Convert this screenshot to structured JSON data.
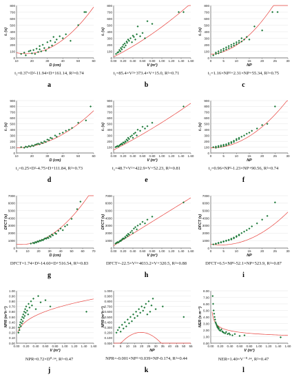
{
  "style": {
    "point_color": "#1e7a3a",
    "fit_color": "#e8413c",
    "axis_color": "#555555",
    "grid_color": "#e4e4e4"
  },
  "chart_data": [
    {
      "type": "scatter",
      "panel": "a",
      "title": "",
      "xlabel": "D (cm)",
      "ylabel": "t₁ (s)",
      "xticks": [
        "10",
        "20",
        "30",
        "40",
        "50",
        "60"
      ],
      "yticks": [
        "0",
        "100",
        "200",
        "300",
        "400",
        "500",
        "600",
        "700",
        "800"
      ],
      "xlim": [
        10,
        60
      ],
      "ylim": [
        0,
        800
      ],
      "x": [
        13,
        15,
        16,
        18,
        19,
        20,
        21,
        22,
        23,
        24,
        25,
        25,
        26,
        27,
        28,
        29,
        30,
        31,
        32,
        33,
        34,
        35,
        36,
        38,
        40,
        42,
        45,
        50,
        54,
        55
      ],
      "y": [
        60,
        80,
        40,
        100,
        110,
        70,
        120,
        60,
        140,
        90,
        180,
        130,
        100,
        200,
        150,
        110,
        240,
        160,
        260,
        190,
        320,
        240,
        280,
        330,
        300,
        360,
        260,
        500,
        700,
        700
      ],
      "fit": {
        "coef": [
          0.37,
          -11.94,
          161.14
        ]
      },
      "equation": "t₁=0.37×D²-11.94×D+161.14, R²=0.74"
    },
    {
      "type": "scatter",
      "panel": "b",
      "title": "",
      "xlabel": "V (m³)",
      "ylabel": "t₁ (s)",
      "xticks": [
        "0.00",
        "0.20",
        "0.40",
        "0.60",
        "0.80",
        "1.00",
        "1.20",
        "1.40",
        "1.60"
      ],
      "yticks": [
        "0",
        "100",
        "200",
        "300",
        "400",
        "500",
        "600",
        "700",
        "800"
      ],
      "xlim": [
        0,
        1.6
      ],
      "ylim": [
        0,
        800
      ],
      "x": [
        0.05,
        0.08,
        0.1,
        0.12,
        0.14,
        0.15,
        0.17,
        0.18,
        0.2,
        0.22,
        0.23,
        0.25,
        0.27,
        0.28,
        0.3,
        0.32,
        0.35,
        0.38,
        0.4,
        0.42,
        0.45,
        0.48,
        0.5,
        0.55,
        0.6,
        0.65,
        0.7,
        0.8,
        1.35,
        1.45
      ],
      "y": [
        60,
        80,
        90,
        120,
        100,
        150,
        130,
        170,
        200,
        160,
        220,
        190,
        250,
        230,
        280,
        260,
        300,
        240,
        340,
        320,
        280,
        360,
        480,
        330,
        380,
        300,
        560,
        520,
        700,
        700
      ],
      "fit": {
        "coef": [
          85.4,
          373.4,
          15.0
        ]
      },
      "equation": "t₁=85.4×V²+373.4×V+15.0, R²=0.71"
    },
    {
      "type": "scatter",
      "panel": "c",
      "title": "",
      "xlabel": "NP",
      "ylabel": "t₁ (s)",
      "xticks": [
        "0",
        "5",
        "10",
        "15",
        "20",
        "25",
        "30"
      ],
      "yticks": [
        "0",
        "100",
        "200",
        "300",
        "400",
        "500",
        "600",
        "700",
        "800"
      ],
      "xlim": [
        0,
        30
      ],
      "ylim": [
        0,
        800
      ],
      "x": [
        1,
        2,
        2,
        3,
        3,
        4,
        4,
        5,
        5,
        6,
        6,
        7,
        7,
        8,
        8,
        9,
        9,
        10,
        10,
        11,
        11,
        12,
        12,
        13,
        14,
        15,
        17,
        20,
        24,
        26
      ],
      "y": [
        40,
        60,
        80,
        70,
        100,
        90,
        120,
        110,
        140,
        130,
        160,
        150,
        180,
        170,
        200,
        190,
        220,
        210,
        240,
        230,
        260,
        250,
        300,
        280,
        320,
        280,
        480,
        420,
        700,
        700
      ],
      "fit": {
        "coef": [
          1.16,
          2.31,
          55.34
        ]
      },
      "equation": "t₁=1.16×NP²+2.31×NP+55.34, R²=0.75"
    },
    {
      "type": "scatter",
      "panel": "d",
      "title": "",
      "xlabel": "D (cm)",
      "ylabel": "t₂ (s)",
      "xticks": [
        "10",
        "20",
        "30",
        "40",
        "50",
        "60"
      ],
      "yticks": [
        "0",
        "100",
        "200",
        "300",
        "400",
        "500",
        "600",
        "700",
        "800",
        "900"
      ],
      "xlim": [
        10,
        60
      ],
      "ylim": [
        0,
        900
      ],
      "x": [
        13,
        15,
        16,
        17,
        18,
        19,
        20,
        21,
        22,
        23,
        24,
        25,
        26,
        27,
        28,
        29,
        30,
        31,
        32,
        33,
        35,
        36,
        38,
        40,
        42,
        44,
        46,
        50,
        55,
        58
      ],
      "y": [
        100,
        90,
        110,
        100,
        120,
        110,
        130,
        120,
        140,
        150,
        160,
        150,
        180,
        170,
        200,
        190,
        230,
        220,
        260,
        250,
        300,
        280,
        330,
        350,
        380,
        400,
        430,
        520,
        560,
        800
      ],
      "fit": {
        "coef": [
          0.25,
          -4.75,
          111.84
        ]
      },
      "equation": "t₂=0.25×D²-4.75×D+111.84, R²=0.73"
    },
    {
      "type": "scatter",
      "panel": "e",
      "title": "",
      "xlabel": "V (m³)",
      "ylabel": "t₂ (s)",
      "xticks": [
        "0.00",
        "0.20",
        "0.40",
        "0.60",
        "0.80",
        "1.00",
        "1.20",
        "1.40",
        "1.60"
      ],
      "yticks": [
        "0",
        "100",
        "200",
        "300",
        "400",
        "500",
        "600",
        "700",
        "800",
        "900"
      ],
      "xlim": [
        0,
        1.6
      ],
      "ylim": [
        0,
        900
      ],
      "x": [
        0.04,
        0.06,
        0.08,
        0.1,
        0.12,
        0.14,
        0.15,
        0.17,
        0.18,
        0.2,
        0.22,
        0.24,
        0.25,
        0.27,
        0.29,
        0.3,
        0.32,
        0.35,
        0.38,
        0.4,
        0.42,
        0.45,
        0.48,
        0.5,
        0.55,
        0.6,
        0.65,
        0.7,
        0.8,
        1.45
      ],
      "y": [
        100,
        110,
        120,
        110,
        130,
        140,
        150,
        160,
        150,
        180,
        170,
        200,
        190,
        230,
        210,
        260,
        240,
        280,
        300,
        260,
        330,
        350,
        300,
        400,
        380,
        450,
        420,
        460,
        520,
        800
      ],
      "fit": {
        "coef": [
          48.7,
          422.9,
          52.23
        ]
      },
      "equation": "t₂=48.7×V²+422.9×V+52.23, R²=0.81"
    },
    {
      "type": "scatter",
      "panel": "f",
      "title": "",
      "xlabel": "NP",
      "ylabel": "t₂ (s)",
      "xticks": [
        "0",
        "5",
        "10",
        "15",
        "20",
        "25",
        "30"
      ],
      "yticks": [
        "0",
        "100",
        "200",
        "300",
        "400",
        "500",
        "600",
        "700",
        "800",
        "900"
      ],
      "xlim": [
        0,
        30
      ],
      "ylim": [
        0,
        900
      ],
      "x": [
        1,
        2,
        2,
        3,
        3,
        4,
        4,
        5,
        5,
        6,
        6,
        7,
        7,
        8,
        8,
        9,
        9,
        10,
        10,
        11,
        11,
        12,
        13,
        14,
        15,
        16,
        18,
        20,
        22,
        25
      ],
      "y": [
        100,
        110,
        90,
        120,
        100,
        130,
        110,
        140,
        120,
        150,
        130,
        170,
        150,
        190,
        170,
        210,
        190,
        240,
        220,
        260,
        240,
        280,
        300,
        330,
        350,
        380,
        420,
        480,
        500,
        800
      ],
      "fit": {
        "coef": [
          0.96,
          -1.23,
          90.56
        ]
      },
      "equation": "t₂=0.96×NP²-1.23×NP+90.56, R²=0.74"
    },
    {
      "type": "scatter",
      "panel": "g",
      "title": "",
      "xlabel": "D (cm)",
      "ylabel": "DFCT (s)",
      "xticks": [
        "0",
        "10",
        "20",
        "30",
        "40",
        "50",
        "60",
        "70"
      ],
      "yticks": [
        "0",
        "1000",
        "2000",
        "3000",
        "4000",
        "5000",
        "6000",
        "7000"
      ],
      "xlim": [
        0,
        70
      ],
      "ylim": [
        0,
        7000
      ],
      "x": [
        13,
        15,
        16,
        17,
        18,
        19,
        20,
        21,
        22,
        23,
        24,
        25,
        26,
        27,
        28,
        29,
        30,
        31,
        32,
        33,
        35,
        36,
        38,
        40,
        42,
        44,
        46,
        50,
        55,
        58
      ],
      "y": [
        600,
        700,
        650,
        800,
        750,
        900,
        850,
        1000,
        950,
        1100,
        1050,
        1200,
        1300,
        1250,
        1400,
        1350,
        1600,
        1500,
        1800,
        1700,
        2000,
        1900,
        2300,
        2600,
        2400,
        2900,
        3100,
        3900,
        5200,
        6200
      ],
      "fit": {
        "coef": [
          1.74,
          -14.6,
          516.54
        ]
      },
      "equation": "DFCT=1.74×D²-14.60×D+516.54, R²=0.83"
    },
    {
      "type": "scatter",
      "panel": "h",
      "title": "",
      "xlabel": "V (m³)",
      "ylabel": "DFCT (s)",
      "xticks": [
        "0.00",
        "0.20",
        "0.40",
        "0.60",
        "0.80",
        "1.00",
        "1.20",
        "1.40",
        "1.60"
      ],
      "yticks": [
        "0",
        "1000",
        "2000",
        "3000",
        "4000",
        "5000",
        "6000",
        "7000"
      ],
      "xlim": [
        0,
        1.6
      ],
      "ylim": [
        0,
        7000
      ],
      "x": [
        0.04,
        0.06,
        0.08,
        0.1,
        0.12,
        0.14,
        0.15,
        0.17,
        0.18,
        0.2,
        0.22,
        0.24,
        0.25,
        0.27,
        0.29,
        0.3,
        0.32,
        0.35,
        0.38,
        0.4,
        0.42,
        0.45,
        0.48,
        0.5,
        0.55,
        0.6,
        0.65,
        0.7,
        0.8,
        1.45
      ],
      "y": [
        600,
        700,
        800,
        750,
        900,
        1000,
        950,
        1100,
        1200,
        1300,
        1250,
        1500,
        1400,
        1700,
        1600,
        1900,
        1800,
        2100,
        2300,
        2000,
        2600,
        2800,
        2500,
        3000,
        3200,
        3500,
        3300,
        3800,
        4200,
        6100
      ],
      "fit": {
        "coef": [
          -22.5,
          4033.2,
          320.5
        ]
      },
      "equation": "DFCT=-22.5×V²+4033.2×V+320.5, R²=0.88"
    },
    {
      "type": "scatter",
      "panel": "i",
      "title": "",
      "xlabel": "NP",
      "ylabel": "DFCT (s)",
      "xticks": [
        "0",
        "5",
        "10",
        "15",
        "20",
        "25",
        "30"
      ],
      "yticks": [
        "0",
        "1000",
        "2000",
        "3000",
        "4000",
        "5000",
        "6000",
        "7000"
      ],
      "xlim": [
        0,
        30
      ],
      "ylim": [
        0,
        7000
      ],
      "x": [
        1,
        2,
        2,
        3,
        3,
        4,
        4,
        5,
        5,
        6,
        6,
        7,
        7,
        8,
        8,
        9,
        9,
        10,
        10,
        11,
        11,
        12,
        13,
        14,
        15,
        16,
        18,
        20,
        22,
        25
      ],
      "y": [
        500,
        600,
        550,
        700,
        650,
        800,
        750,
        900,
        850,
        1000,
        950,
        1100,
        1050,
        1250,
        1150,
        1400,
        1300,
        1600,
        1500,
        1800,
        1700,
        2000,
        2200,
        2400,
        2600,
        2900,
        3300,
        3800,
        4300,
        6100
      ],
      "fit": {
        "coef": [
          6.5,
          -52.1,
          523.9
        ]
      },
      "equation": "DFCT=6.5×NP²-52.1×NP+523.9, R²=0.87"
    },
    {
      "type": "scatter",
      "panel": "j",
      "title": "",
      "xlabel": "V (m³)",
      "ylabel": "NPR (m³h⁻¹)",
      "xticks": [
        "0.00",
        "0.20",
        "0.40",
        "0.60",
        "0.80",
        "1.00",
        "1.20",
        "1.40",
        "1.60"
      ],
      "yticks": [
        "0.00",
        "0.10",
        "0.20",
        "0.30",
        "0.40",
        "0.50",
        "0.60",
        "0.70",
        "0.80",
        "0.90",
        "1.00"
      ],
      "xlim": [
        0,
        1.6
      ],
      "ylim": [
        0,
        1.0
      ],
      "x": [
        0.04,
        0.05,
        0.06,
        0.07,
        0.08,
        0.09,
        0.1,
        0.11,
        0.12,
        0.13,
        0.14,
        0.15,
        0.16,
        0.17,
        0.18,
        0.19,
        0.2,
        0.22,
        0.24,
        0.25,
        0.27,
        0.3,
        0.32,
        0.35,
        0.4,
        0.45,
        0.5,
        0.6,
        0.7,
        1.45
      ],
      "y": [
        0.2,
        0.3,
        0.25,
        0.35,
        0.4,
        0.32,
        0.45,
        0.38,
        0.5,
        0.42,
        0.55,
        0.48,
        0.6,
        0.52,
        0.65,
        0.58,
        0.7,
        0.62,
        0.55,
        0.75,
        0.68,
        0.8,
        0.72,
        0.85,
        0.65,
        0.9,
        0.78,
        0.82,
        0.7,
        0.6
      ],
      "fit": {
        "a": 0.72,
        "b": 0.34,
        "form": "power"
      },
      "equation": "NPR=0.72×D⁰·³⁴, R²=0.47"
    },
    {
      "type": "scatter",
      "panel": "k",
      "title": "",
      "xlabel": "NP",
      "ylabel": "NPR (m³h⁻¹)",
      "xticks": [
        "0",
        "5",
        "10",
        "15",
        "20",
        "25",
        "30",
        "35",
        "40",
        "45",
        "50",
        "55"
      ],
      "yticks": [
        "0.000",
        "0.100",
        "0.200",
        "0.300",
        "0.400",
        "0.500",
        "0.600",
        "0.700",
        "0.800",
        "0.900",
        "1.000"
      ],
      "xlim": [
        0,
        55
      ],
      "ylim": [
        0,
        1.0
      ],
      "x": [
        2,
        3,
        4,
        5,
        6,
        7,
        8,
        9,
        10,
        11,
        12,
        13,
        14,
        15,
        16,
        17,
        18,
        19,
        20,
        21,
        22,
        23,
        24,
        25,
        26,
        27,
        28,
        30,
        35,
        50
      ],
      "y": [
        0.2,
        0.25,
        0.3,
        0.22,
        0.35,
        0.28,
        0.4,
        0.32,
        0.45,
        0.38,
        0.5,
        0.42,
        0.55,
        0.48,
        0.6,
        0.52,
        0.65,
        0.58,
        0.7,
        0.62,
        0.68,
        0.75,
        0.55,
        0.8,
        0.6,
        0.72,
        0.85,
        0.65,
        0.7,
        0.5
      ],
      "fit": {
        "coef": [
          -0.001,
          0.039,
          -0.174
        ]
      },
      "equation": "NPR=-0.001×NP²+0.039×NP-0.174, R²=0.44"
    },
    {
      "type": "scatter",
      "panel": "l",
      "title": "",
      "xlabel": "V (m³)",
      "ylabel": "NER (s m⁻³)",
      "xticks": [
        "0.00",
        "0.20",
        "0.40",
        "0.60",
        "0.80",
        "1.00",
        "1.20",
        "1.40",
        "1.60"
      ],
      "yticks": [
        "0.00",
        "1.00",
        "2.00",
        "3.00",
        "4.00",
        "5.00",
        "6.00",
        "7.00",
        "8.00"
      ],
      "xlim": [
        0,
        1.6
      ],
      "ylim": [
        0,
        8.0
      ],
      "x": [
        0.04,
        0.05,
        0.06,
        0.07,
        0.08,
        0.09,
        0.1,
        0.11,
        0.12,
        0.13,
        0.14,
        0.15,
        0.16,
        0.17,
        0.18,
        0.2,
        0.22,
        0.24,
        0.25,
        0.27,
        0.3,
        0.32,
        0.35,
        0.38,
        0.4,
        0.45,
        0.5,
        0.6,
        0.7,
        1.45
      ],
      "y": [
        7.2,
        6.0,
        5.0,
        4.5,
        4.0,
        3.6,
        3.2,
        3.0,
        2.8,
        2.6,
        2.4,
        2.5,
        2.2,
        2.3,
        2.0,
        1.9,
        2.1,
        1.8,
        1.7,
        1.6,
        1.5,
        1.7,
        1.4,
        1.5,
        1.3,
        1.2,
        1.4,
        1.1,
        1.2,
        0.9
      ],
      "fit": {
        "a": 1.4,
        "b": -0.34,
        "form": "power"
      },
      "equation": "NER=1.40×V⁻⁰·³⁴, R²=0.47"
    }
  ]
}
